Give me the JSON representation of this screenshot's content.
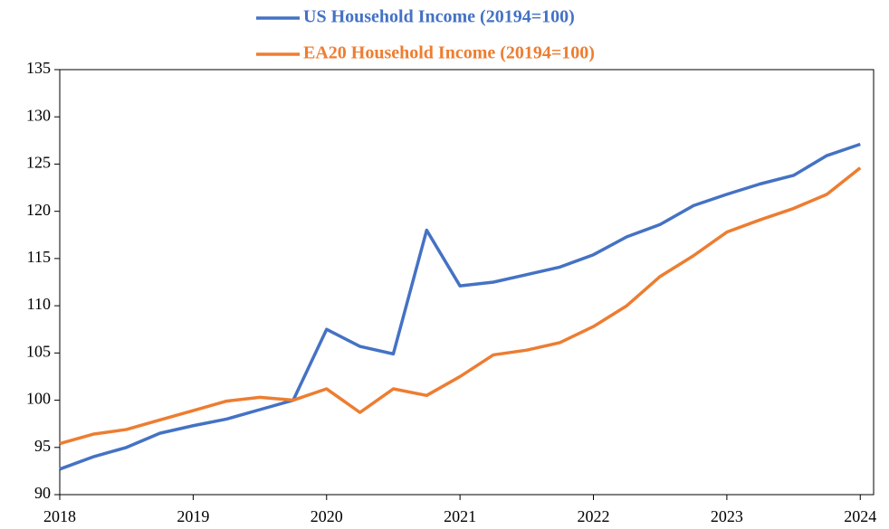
{
  "chart_data": {
    "type": "line",
    "x": [
      2018,
      2018.25,
      2018.5,
      2018.75,
      2019,
      2019.25,
      2019.5,
      2019.75,
      2020,
      2020.25,
      2020.5,
      2020.75,
      2021,
      2021.25,
      2021.5,
      2021.75,
      2022,
      2022.25,
      2022.5,
      2022.75,
      2023,
      2023.25,
      2023.5,
      2023.75,
      2024
    ],
    "series": [
      {
        "name": "US Household Income (20194=100)",
        "color": "#4472c4",
        "values": [
          92.7,
          94.0,
          95.0,
          96.5,
          97.3,
          98.0,
          99.0,
          100.0,
          107.5,
          105.7,
          104.9,
          118.0,
          112.1,
          112.5,
          113.3,
          114.1,
          115.4,
          117.3,
          118.6,
          120.6,
          121.8,
          122.9,
          123.8,
          125.9,
          127.1
        ]
      },
      {
        "name": "EA20 Household Income (20194=100)",
        "color": "#ed7d31",
        "values": [
          95.4,
          96.4,
          96.9,
          97.9,
          98.9,
          99.9,
          100.3,
          100.0,
          101.2,
          98.7,
          101.2,
          100.5,
          102.5,
          104.8,
          105.3,
          106.1,
          107.8,
          110.0,
          113.1,
          115.3,
          117.8,
          119.1,
          120.3,
          121.8,
          124.6
        ]
      }
    ],
    "xlim": [
      2018,
      2024.1
    ],
    "xticks": [
      2018,
      2019,
      2020,
      2021,
      2022,
      2023,
      2024
    ],
    "ylim": [
      90,
      135
    ],
    "yticks": [
      90,
      95,
      100,
      105,
      110,
      115,
      120,
      125,
      130,
      135
    ]
  }
}
